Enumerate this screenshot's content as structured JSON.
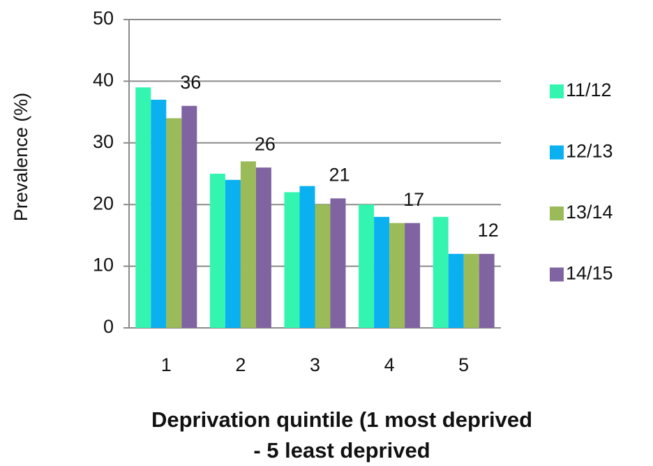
{
  "chart_data": {
    "type": "bar",
    "y_label": "Prevalence (%)",
    "x_label": [
      "Deprivation quintile (1 most deprived",
      "- 5 least deprived"
    ],
    "categories": [
      "1",
      "2",
      "3",
      "4",
      "5"
    ],
    "series": [
      {
        "name": "11/12",
        "color": "#33f5b0",
        "values": [
          39,
          25,
          22,
          20,
          18
        ]
      },
      {
        "name": "12/13",
        "color": "#0ab0f0",
        "values": [
          37,
          24,
          23,
          18,
          12
        ]
      },
      {
        "name": "13/14",
        "color": "#9bbb59",
        "values": [
          34,
          27,
          20,
          17,
          12
        ]
      },
      {
        "name": "14/15",
        "color": "#8064a2",
        "values": [
          36,
          26,
          21,
          17,
          12
        ],
        "data_labels": true
      }
    ],
    "ylim": [
      0,
      50
    ],
    "yticks": [
      0,
      10,
      20,
      30,
      40,
      50
    ],
    "grid": true,
    "legend": "right"
  }
}
